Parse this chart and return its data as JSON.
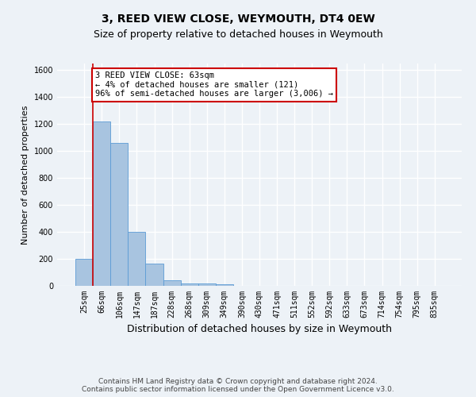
{
  "title": "3, REED VIEW CLOSE, WEYMOUTH, DT4 0EW",
  "subtitle": "Size of property relative to detached houses in Weymouth",
  "xlabel": "Distribution of detached houses by size in Weymouth",
  "ylabel": "Number of detached properties",
  "categories": [
    "25sqm",
    "66sqm",
    "106sqm",
    "147sqm",
    "187sqm",
    "228sqm",
    "268sqm",
    "309sqm",
    "349sqm",
    "390sqm",
    "430sqm",
    "471sqm",
    "511sqm",
    "552sqm",
    "592sqm",
    "633sqm",
    "673sqm",
    "714sqm",
    "754sqm",
    "795sqm",
    "835sqm"
  ],
  "values": [
    200,
    1220,
    1060,
    400,
    165,
    40,
    20,
    15,
    10,
    2,
    1,
    0,
    0,
    0,
    0,
    0,
    0,
    0,
    0,
    0,
    0
  ],
  "bar_color": "#a8c4e0",
  "bar_edge_color": "#5b9bd5",
  "highlight_line_color": "#cc0000",
  "annotation_box_text": "3 REED VIEW CLOSE: 63sqm\n← 4% of detached houses are smaller (121)\n96% of semi-detached houses are larger (3,006) →",
  "annotation_box_color": "#cc0000",
  "ylim": [
    0,
    1650
  ],
  "yticks": [
    0,
    200,
    400,
    600,
    800,
    1000,
    1200,
    1400,
    1600
  ],
  "footer_line1": "Contains HM Land Registry data © Crown copyright and database right 2024.",
  "footer_line2": "Contains public sector information licensed under the Open Government Licence v3.0.",
  "background_color": "#edf2f7",
  "grid_color": "#ffffff",
  "title_fontsize": 10,
  "subtitle_fontsize": 9,
  "axis_label_fontsize": 8,
  "tick_fontsize": 7,
  "annotation_fontsize": 7.5,
  "footer_fontsize": 6.5
}
